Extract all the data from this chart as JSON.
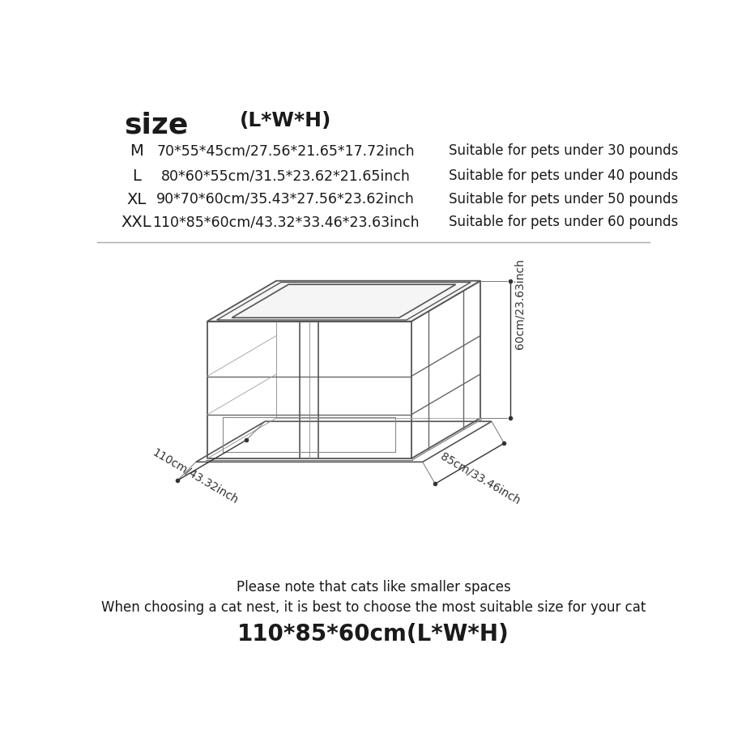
{
  "bg_color": "#ffffff",
  "header_size": "size",
  "header_lwh": "(L*W*H)",
  "rows": [
    {
      "size": "M",
      "dims": "70*55*45cm/27.56*21.65*17.72inch",
      "suitability": "Suitable for pets under 30 pounds"
    },
    {
      "size": "L",
      "dims": "80*60*55cm/31.5*23.62*21.65inch",
      "suitability": "Suitable for pets under 40 pounds"
    },
    {
      "size": "XL",
      "dims": "90*70*60cm/35.43*27.56*23.62inch",
      "suitability": "Suitable for pets under 50 pounds"
    },
    {
      "size": "XXL",
      "dims": "110*85*60cm/43.32*33.46*23.63inch",
      "suitability": "Suitable for pets under 60 pounds"
    }
  ],
  "note1": "Please note that cats like smaller spaces",
  "note2": "When choosing a cat nest, it is best to choose the most suitable size for your cat",
  "note3": "110*85*60cm(L*W*H)",
  "dim_L": "110cm/43.32inch",
  "dim_W": "85cm/33.46inch",
  "dim_H": "60cm/23.63inch",
  "text_color": "#1a1a1a",
  "line_color": "#555555",
  "divider_color": "#aaaaaa"
}
